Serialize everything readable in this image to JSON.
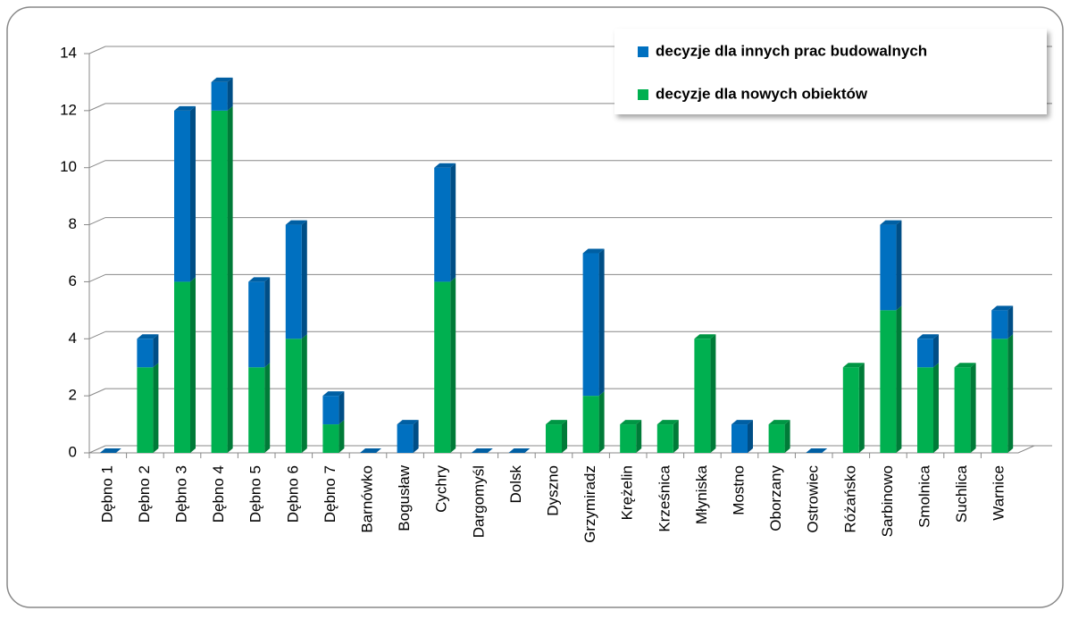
{
  "chart_data": {
    "type": "stacked_bar",
    "categories": [
      "Dębno 1",
      "Dębno 2",
      "Dębno 3",
      "Dębno 4",
      "Dębno 5",
      "Dębno 6",
      "Dębno 7",
      "Barnówko",
      "Bogusław",
      "Cychry",
      "Dargomyśl",
      "Dolsk",
      "Dyszno",
      "Grzymiradz",
      "Krężelin",
      "Krześnica",
      "Młyniska",
      "Mostno",
      "Oborzany",
      "Ostrowiec",
      "Różańsko",
      "Sarbinowo",
      "Smolnica",
      "Suchlica",
      "Warnice"
    ],
    "series": [
      {
        "name": "decyzje dla nowych obiektów",
        "color": "#00b050",
        "values": [
          0,
          3,
          6,
          12,
          3,
          4,
          1,
          0,
          0,
          6,
          0,
          0,
          1,
          2,
          1,
          1,
          4,
          0,
          1,
          0,
          3,
          5,
          3,
          3,
          4
        ]
      },
      {
        "name": "decyzje dla innych prac budowalnych",
        "color": "#0070c0",
        "values": [
          0,
          1,
          6,
          1,
          3,
          4,
          1,
          0,
          1,
          4,
          0,
          0,
          0,
          5,
          0,
          0,
          0,
          1,
          0,
          0,
          0,
          3,
          1,
          0,
          1
        ]
      }
    ],
    "ylim": [
      0,
      14
    ],
    "yticks": [
      0,
      2,
      4,
      6,
      8,
      10,
      12,
      14
    ],
    "grid": true,
    "legend": "top-right"
  }
}
